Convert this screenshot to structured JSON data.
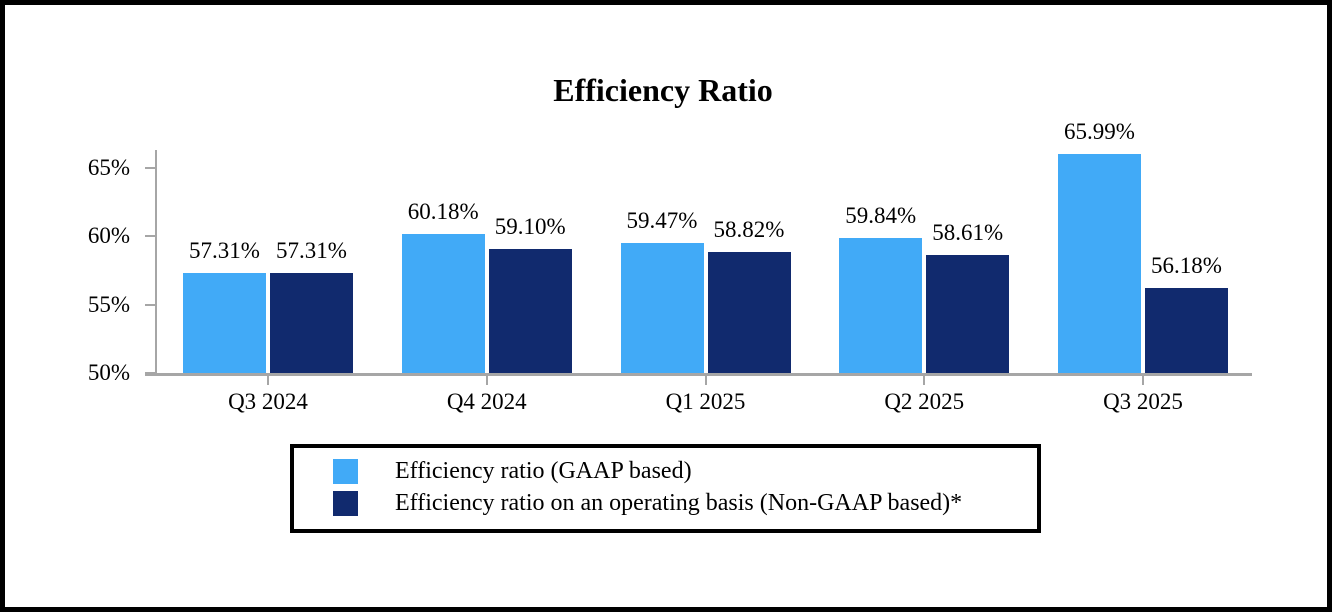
{
  "chart_data": {
    "type": "bar",
    "title": "Efficiency Ratio",
    "categories": [
      "Q3 2024",
      "Q4 2024",
      "Q1 2025",
      "Q2 2025",
      "Q3 2025"
    ],
    "series": [
      {
        "name": "Efficiency ratio (GAAP based)",
        "color": "#41AAF7",
        "values": [
          57.31,
          60.18,
          59.47,
          59.84,
          65.99
        ],
        "labels": [
          "57.31%",
          "60.18%",
          "59.47%",
          "59.84%",
          "65.99%"
        ]
      },
      {
        "name": "Efficiency ratio on an operating basis (Non-GAAP based)*",
        "color": "#112A6E",
        "values": [
          57.31,
          59.1,
          58.82,
          58.61,
          56.18
        ],
        "labels": [
          "57.31%",
          "59.10%",
          "58.82%",
          "58.61%",
          "56.18%"
        ]
      }
    ],
    "ylim": [
      50,
      66.4
    ],
    "yticks": [
      {
        "value": 65,
        "label": "65%"
      },
      {
        "value": 60,
        "label": "60%"
      },
      {
        "value": 55,
        "label": "55%"
      },
      {
        "value": 50,
        "label": "50%"
      }
    ],
    "axis_color": "#A6A6A6",
    "grid": false,
    "legend_position": "bottom",
    "background": "#FFFFFF",
    "frame_border_color": "#000000"
  }
}
